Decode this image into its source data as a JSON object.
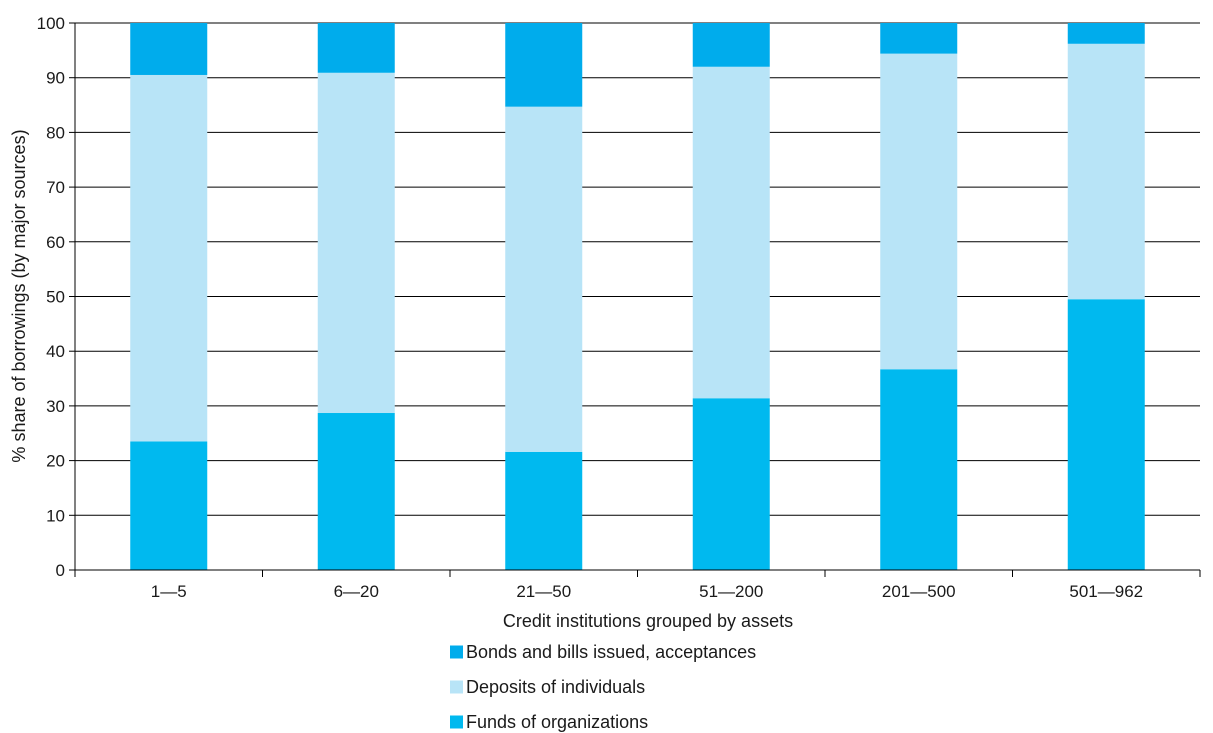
{
  "chart_data": {
    "type": "bar",
    "stacked": true,
    "title": "",
    "xlabel": "Credit institutions grouped by assets",
    "ylabel": "% share of borrowings  (by major sources)",
    "ylim": [
      0,
      100
    ],
    "yticks": [
      0,
      10,
      20,
      30,
      40,
      50,
      60,
      70,
      80,
      90,
      100
    ],
    "grid": "horizontal",
    "legend_position": "bottom",
    "categories": [
      "1—5",
      "6—20",
      "21—50",
      "51—200",
      "201—500",
      "501—962"
    ],
    "series": [
      {
        "name": "Funds of organizations",
        "color": "#00b9ef",
        "values": [
          23.5,
          28.7,
          21.6,
          31.4,
          36.7,
          49.5
        ]
      },
      {
        "name": "Deposits of individuals",
        "color": "#b8e4f7",
        "values": [
          67.0,
          62.2,
          63.1,
          60.6,
          57.7,
          46.7
        ]
      },
      {
        "name": "Bonds and bills issued, acceptances",
        "color": "#00acec",
        "values": [
          9.5,
          9.1,
          15.3,
          8.0,
          5.6,
          3.8
        ]
      }
    ],
    "legend_order": [
      2,
      1,
      0
    ]
  }
}
